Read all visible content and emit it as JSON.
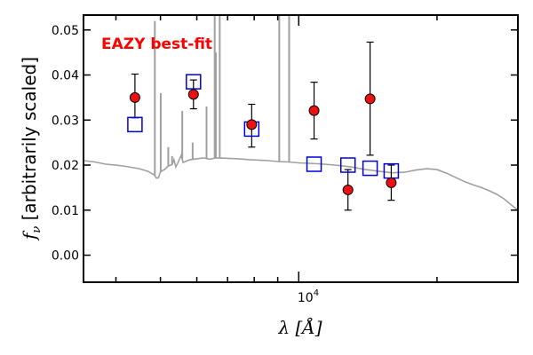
{
  "chart_data": {
    "type": "scatter",
    "title": "",
    "xlabel": "λ [Å]",
    "ylabel": "f_ν [arbitrarily scaled]",
    "xscale": "log",
    "xlim": [
      3400,
      30000
    ],
    "ylim": [
      -0.006,
      0.0533
    ],
    "yticks": [
      0.0,
      0.01,
      0.02,
      0.03,
      0.04,
      0.05
    ],
    "ytick_labels": [
      "0.00",
      "0.01",
      "0.02",
      "0.03",
      "0.04",
      "0.05"
    ],
    "xtick_label": "10^4",
    "xtick_label_base": "10",
    "xtick_label_exp": "4",
    "grid": false,
    "annotation": {
      "text": "EAZY best-fit",
      "color": "#ff0000"
    },
    "colors": {
      "template": "#a0a0a0",
      "observed": "#ee1111",
      "model": "#0000dd",
      "errorbar": "#000000"
    },
    "series": [
      {
        "kind": "observed",
        "marker": "circle",
        "points": [
          {
            "x": 4400,
            "y": 0.035,
            "lo": 0.0305,
            "hi": 0.0402
          },
          {
            "x": 5900,
            "y": 0.0357,
            "lo": 0.0325,
            "hi": 0.0389
          },
          {
            "x": 7900,
            "y": 0.029,
            "lo": 0.024,
            "hi": 0.0335
          },
          {
            "x": 10800,
            "y": 0.0321,
            "lo": 0.0258,
            "hi": 0.0384
          },
          {
            "x": 12800,
            "y": 0.0145,
            "lo": 0.01,
            "hi": 0.019
          },
          {
            "x": 14300,
            "y": 0.0347,
            "lo": 0.0222,
            "hi": 0.0473
          },
          {
            "x": 15900,
            "y": 0.0161,
            "lo": 0.0122,
            "hi": 0.02
          }
        ]
      },
      {
        "kind": "model",
        "marker": "square",
        "points": [
          {
            "x": 4400,
            "y": 0.029
          },
          {
            "x": 5900,
            "y": 0.0385
          },
          {
            "x": 7900,
            "y": 0.028
          },
          {
            "x": 10800,
            "y": 0.0202
          },
          {
            "x": 12800,
            "y": 0.02
          },
          {
            "x": 14300,
            "y": 0.0193
          },
          {
            "x": 15900,
            "y": 0.0187
          }
        ]
      }
    ],
    "template_curve": [
      [
        3400,
        0.021
      ],
      [
        3600,
        0.0207
      ],
      [
        3800,
        0.0202
      ],
      [
        4000,
        0.02
      ],
      [
        4200,
        0.0197
      ],
      [
        4500,
        0.0192
      ],
      [
        4700,
        0.0186
      ],
      [
        4850,
        0.0178
      ],
      [
        4900,
        0.0171
      ],
      [
        4950,
        0.0172
      ],
      [
        5000,
        0.0185
      ],
      [
        5100,
        0.019
      ],
      [
        5200,
        0.0198
      ],
      [
        5300,
        0.0201
      ],
      [
        5350,
        0.0212
      ],
      [
        5400,
        0.0196
      ],
      [
        5450,
        0.0204
      ],
      [
        5550,
        0.0222
      ],
      [
        5600,
        0.0206
      ],
      [
        5700,
        0.0209
      ],
      [
        5800,
        0.0212
      ],
      [
        6000,
        0.0214
      ],
      [
        6200,
        0.0216
      ],
      [
        6400,
        0.0213
      ],
      [
        6600,
        0.0216
      ],
      [
        7000,
        0.0215
      ],
      [
        7400,
        0.0214
      ],
      [
        7800,
        0.0212
      ],
      [
        8200,
        0.0211
      ],
      [
        8600,
        0.021
      ],
      [
        9000,
        0.0208
      ],
      [
        9500,
        0.0207
      ],
      [
        10000,
        0.0205
      ],
      [
        11000,
        0.0203
      ],
      [
        12000,
        0.02
      ],
      [
        13000,
        0.0196
      ],
      [
        14000,
        0.019
      ],
      [
        15000,
        0.0186
      ],
      [
        16000,
        0.0183
      ],
      [
        17000,
        0.0184
      ],
      [
        18000,
        0.0189
      ],
      [
        19000,
        0.0192
      ],
      [
        20000,
        0.019
      ],
      [
        21000,
        0.0182
      ],
      [
        22000,
        0.0172
      ],
      [
        23000,
        0.0163
      ],
      [
        24000,
        0.0156
      ],
      [
        25000,
        0.015
      ],
      [
        26000,
        0.0143
      ],
      [
        27000,
        0.0135
      ],
      [
        28000,
        0.0125
      ],
      [
        29000,
        0.0112
      ],
      [
        30000,
        0.01
      ]
    ],
    "emission_lines": [
      {
        "x": 4861,
        "y": 0.052
      },
      {
        "x": 5007,
        "y": 0.036
      },
      {
        "x": 5200,
        "y": 0.024
      },
      {
        "x": 5300,
        "y": 0.022
      },
      {
        "x": 5577,
        "y": 0.032
      },
      {
        "x": 5876,
        "y": 0.025
      },
      {
        "x": 6300,
        "y": 0.033
      },
      {
        "x": 6563,
        "y": 0.055
      },
      {
        "x": 6600,
        "y": 0.045
      },
      {
        "x": 6730,
        "y": 0.055
      },
      {
        "x": 9070,
        "y": 0.055
      },
      {
        "x": 9530,
        "y": 0.055
      }
    ]
  }
}
